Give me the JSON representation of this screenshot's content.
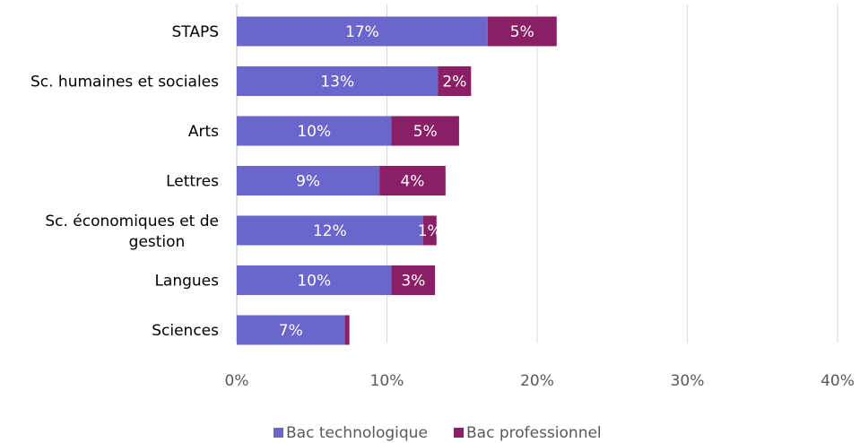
{
  "chart_data": {
    "type": "bar",
    "orientation": "horizontal",
    "stacked": true,
    "title": "",
    "xlabel": "",
    "ylabel": "",
    "categories": [
      "STAPS",
      "Sc. humaines et sociales",
      "Arts",
      "Lettres",
      "Sc. économiques et de gestion",
      "Langues",
      "Sciences"
    ],
    "series": [
      {
        "name": "Bac technologique",
        "color": "#6b66cc",
        "values": [
          16.7,
          13.4,
          10.3,
          9.5,
          12.4,
          10.3,
          7.2
        ],
        "labels": [
          "17%",
          "13%",
          "10%",
          "9%",
          "12%",
          "10%",
          "7%"
        ]
      },
      {
        "name": "Bac professionnel",
        "color": "#8b1f66",
        "values": [
          4.6,
          2.2,
          4.5,
          4.4,
          0.9,
          2.9,
          0.3
        ],
        "labels": [
          "5%",
          "2%",
          "5%",
          "4%",
          "1%",
          "3%",
          ""
        ]
      }
    ],
    "xlim": [
      0,
      40
    ],
    "xticks": [
      0,
      10,
      20,
      30,
      40
    ],
    "xtick_labels": [
      "0%",
      "10%",
      "20%",
      "30%",
      "40%"
    ],
    "grid": true,
    "legend": "bottom"
  }
}
